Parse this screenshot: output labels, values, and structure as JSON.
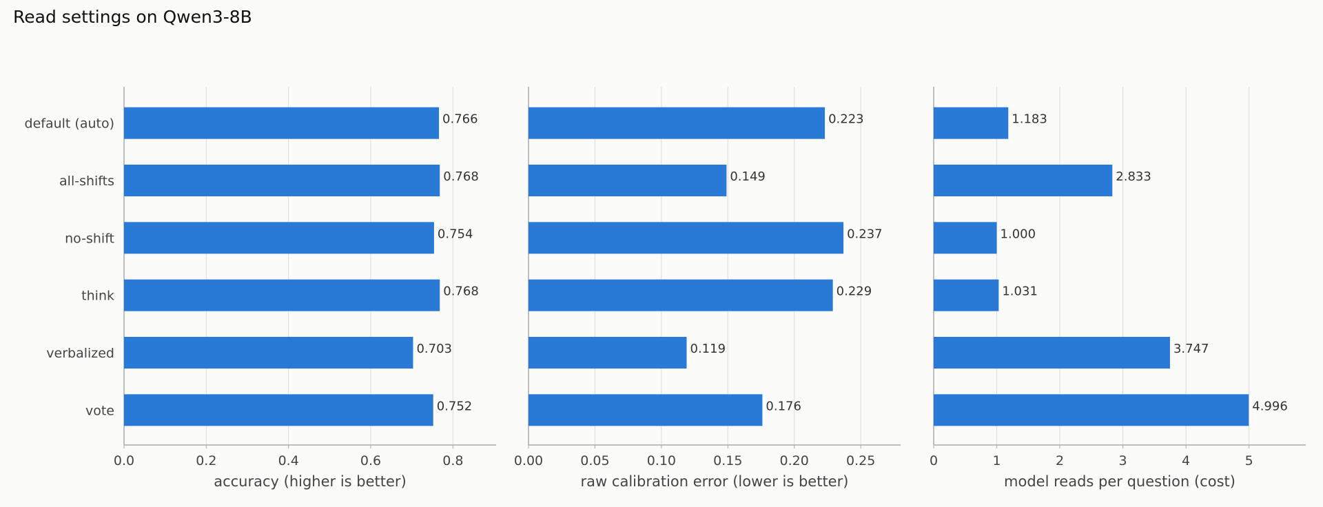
{
  "title": "Read settings on Qwen3-8B",
  "colors": {
    "bar": "#2979d6",
    "grid": "#dcdcdc",
    "axis": "#aaaaaa"
  },
  "chart_data": [
    {
      "type": "bar",
      "orientation": "horizontal",
      "categories": [
        "default (auto)",
        "all-shifts",
        "no-shift",
        "think",
        "verbalized",
        "vote"
      ],
      "values": [
        0.766,
        0.768,
        0.754,
        0.768,
        0.703,
        0.752
      ],
      "value_labels": [
        "0.766",
        "0.768",
        "0.754",
        "0.768",
        "0.703",
        "0.752"
      ],
      "xlabel": "accuracy (higher is better)",
      "xlim": [
        0,
        0.905
      ],
      "ticks": [
        0,
        0.2,
        0.4,
        0.6,
        0.8
      ],
      "tick_labels": [
        "0.0",
        "0.2",
        "0.4",
        "0.6",
        "0.8"
      ],
      "grid": true
    },
    {
      "type": "bar",
      "orientation": "horizontal",
      "categories": [
        "default (auto)",
        "all-shifts",
        "no-shift",
        "think",
        "verbalized",
        "vote"
      ],
      "values": [
        0.223,
        0.149,
        0.237,
        0.229,
        0.119,
        0.176
      ],
      "value_labels": [
        "0.223",
        "0.149",
        "0.237",
        "0.229",
        "0.119",
        "0.176"
      ],
      "xlabel": "raw calibration error (lower is better)",
      "xlim": [
        0,
        0.28
      ],
      "ticks": [
        0,
        0.05,
        0.1,
        0.15,
        0.2,
        0.25
      ],
      "tick_labels": [
        "0.00",
        "0.05",
        "0.10",
        "0.15",
        "0.20",
        "0.25"
      ],
      "grid": true
    },
    {
      "type": "bar",
      "orientation": "horizontal",
      "categories": [
        "default (auto)",
        "all-shifts",
        "no-shift",
        "think",
        "verbalized",
        "vote"
      ],
      "values": [
        1.183,
        2.833,
        1.0,
        1.031,
        3.747,
        4.996
      ],
      "value_labels": [
        "1.183",
        "2.833",
        "1.000",
        "1.031",
        "3.747",
        "4.996"
      ],
      "xlabel": "model reads per question (cost)",
      "xlim": [
        0,
        5.9
      ],
      "ticks": [
        0,
        1,
        2,
        3,
        4,
        5
      ],
      "tick_labels": [
        "0",
        "1",
        "2",
        "3",
        "4",
        "5"
      ],
      "grid": true
    }
  ]
}
